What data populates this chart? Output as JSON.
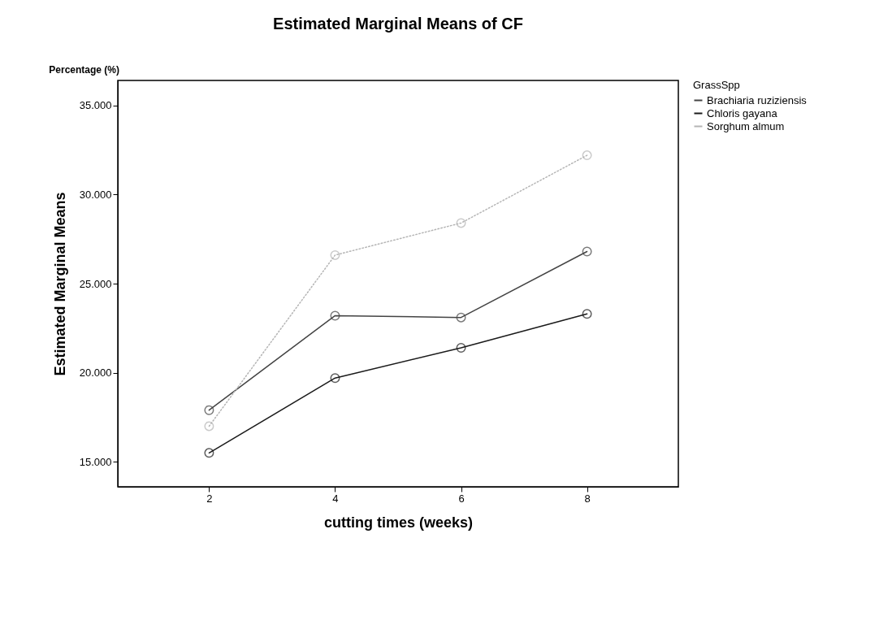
{
  "chart_data": {
    "type": "line",
    "title": "Estimated Marginal Means of CF",
    "xlabel": "cutting times (weeks)",
    "ylabel": "Estimated Marginal Means",
    "legend_title": "GrassSpp",
    "annotations": [
      "Percentage (%)"
    ],
    "x": [
      2,
      4,
      6,
      8
    ],
    "series": [
      {
        "name": "Brachiaria ruziziensis",
        "color": "#444444",
        "values": [
          17.9,
          23.2,
          23.1,
          26.8
        ]
      },
      {
        "name": "Chloris gayana",
        "color": "#1a1a1a",
        "values": [
          15.5,
          19.7,
          21.4,
          23.3
        ]
      },
      {
        "name": "Sorghum almum",
        "color": "#b5b5b5",
        "values": [
          17.0,
          26.6,
          28.4,
          32.2
        ],
        "line_style": "dotted"
      }
    ],
    "xlim": [
      0.55,
      9.45
    ],
    "xticks": [
      2,
      4,
      6,
      8
    ],
    "ylim": [
      13.6,
      36.4
    ],
    "yticks": [
      {
        "value": 15,
        "label": "15.000"
      },
      {
        "value": 20,
        "label": "20.000"
      },
      {
        "value": 25,
        "label": "25.000"
      },
      {
        "value": 30,
        "label": "30.000"
      },
      {
        "value": 35,
        "label": "35.000"
      }
    ],
    "grid": false,
    "legend": "top right",
    "marker": "circle",
    "line_style": "solid"
  }
}
